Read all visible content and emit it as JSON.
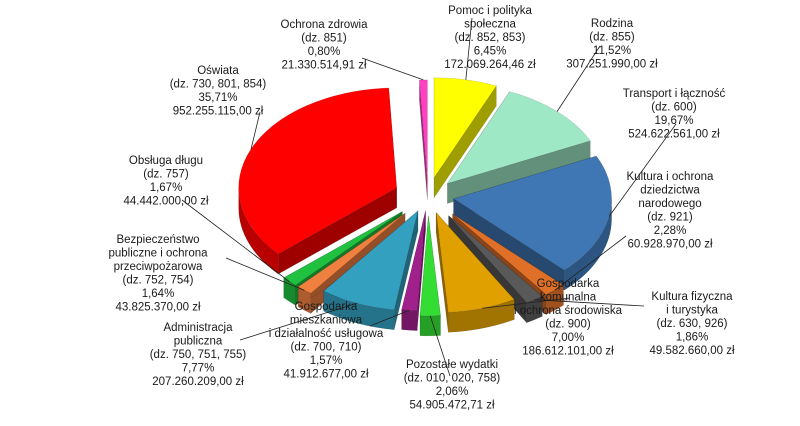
{
  "chart_data": {
    "type": "pie",
    "style": "3d-exploded",
    "currency": "zł",
    "slices": [
      {
        "name": "Pomoc i polityka społeczna",
        "sections": "(dz. 852, 853)",
        "percent": 6.45,
        "value": "172.069.264,46 zł",
        "color": "#ffff00"
      },
      {
        "name": "Rodzina",
        "sections": "(dz. 855)",
        "percent": 11.52,
        "value": "307.251.990,00 zł",
        "color": "#9fe8c6"
      },
      {
        "name": "Transport i łączność",
        "sections": "(dz. 600)",
        "percent": 19.67,
        "value": "524.622.561,00 zł",
        "color": "#3f76b4"
      },
      {
        "name": "Kultura i ochrona dziedzictwa narodowego",
        "sections": "(dz. 921)",
        "percent": 2.28,
        "value": "60.928.970,00 zł",
        "color": "#e07028"
      },
      {
        "name": "Kultura fizyczna i turystyka",
        "sections": "(dz. 630, 926)",
        "percent": 1.86,
        "value": "49.582.660,00 zł",
        "color": "#595959"
      },
      {
        "name": "Gospodarka komunalna i ochrona środowiska",
        "sections": "(dz. 900)",
        "percent": 7.0,
        "value": "186.612.101,00 zł",
        "color": "#e0a000"
      },
      {
        "name": "Pozostałe wydatki",
        "sections": "(dz. 010, 020, 758)",
        "percent": 2.06,
        "value": "54.905.472,71 zł",
        "color": "#33dd33"
      },
      {
        "name": "Gospodarka mieszkaniowa i działalność usługowa",
        "sections": "(dz. 700, 710)",
        "percent": 1.57,
        "value": "41.912.677,00 zł",
        "color": "#a0208c"
      },
      {
        "name": "Administracja publiczna",
        "sections": "(dz. 750, 751, 755)",
        "percent": 7.77,
        "value": "207.260.209,00 zł",
        "color": "#33a0c0"
      },
      {
        "name": "Bezpieczeństwo publiczne i ochrona przeciwpożarowa",
        "sections": "(dz. 752, 754)",
        "percent": 1.64,
        "value": "43.825.370,00 zł",
        "color": "#f08040"
      },
      {
        "name": "Obsługa długu",
        "sections": "(dz. 757)",
        "percent": 1.67,
        "value": "44.442.000,00 zł",
        "color": "#20c040"
      },
      {
        "name": "Oświata",
        "sections": "(dz. 730, 801, 854)",
        "percent": 35.71,
        "value": "952.255.115,00 zł",
        "color": "#ff0000"
      },
      {
        "name": "Ochrona zdrowia",
        "sections": "(dz. 851)",
        "percent": 0.8,
        "value": "21.330.514,91 zł",
        "color": "#ff40c0"
      }
    ],
    "labels": [
      {
        "lines": [
          "Pomoc i polityka",
          "społeczna",
          "(dz. 852, 853)",
          "6,45%",
          "172.069.264,46 zł"
        ]
      },
      {
        "lines": [
          "Rodzina",
          "(dz. 855)",
          "11,52%",
          "307.251.990,00 zł"
        ]
      },
      {
        "lines": [
          "Transport i łączność",
          "(dz. 600)",
          "19,67%",
          "524.622.561,00 zł"
        ]
      },
      {
        "lines": [
          "Kultura i ochrona",
          "dziedzictwa",
          "narodowego",
          "(dz. 921)",
          "2,28%",
          "60.928.970,00 zł"
        ]
      },
      {
        "lines": [
          "Kultura fizyczna",
          "i turystyka",
          "(dz. 630, 926)",
          "1,86%",
          "49.582.660,00 zł"
        ]
      },
      {
        "lines": [
          "Gospodarka",
          "komunalna",
          "i ochrona środowiska",
          "(dz. 900)",
          "7,00%",
          "186.612.101,00 zł"
        ]
      },
      {
        "lines": [
          "Pozostałe wydatki",
          "(dz. 010, 020, 758)",
          "2,06%",
          "54.905.472,71 zł"
        ]
      },
      {
        "lines": [
          "Gospodarka",
          "mieszkaniowa",
          "i działalność usługowa",
          "(dz. 700, 710)",
          "1,57%",
          "41.912.677,00 zł"
        ]
      },
      {
        "lines": [
          "Administracja",
          "publiczna",
          "(dz. 750, 751, 755)",
          "7,77%",
          "207.260.209,00 zł"
        ]
      },
      {
        "lines": [
          "Bezpieczeństwo",
          "publiczne i ochrona",
          "przeciwpożarowa",
          "(dz. 752, 754)",
          "1,64%",
          "43.825.370,00 zł"
        ]
      },
      {
        "lines": [
          "Obsługa długu",
          "(dz. 757)",
          "1,67%",
          "44.442.000,00 zł"
        ]
      },
      {
        "lines": [
          "Oświata",
          "(dz. 730, 801, 854)",
          "35,71%",
          "952.255.115,00 zł"
        ]
      },
      {
        "lines": [
          "Ochrona zdrowia",
          "(dz. 851)",
          "0,80%",
          "21.330.514,91 zł"
        ]
      }
    ]
  }
}
